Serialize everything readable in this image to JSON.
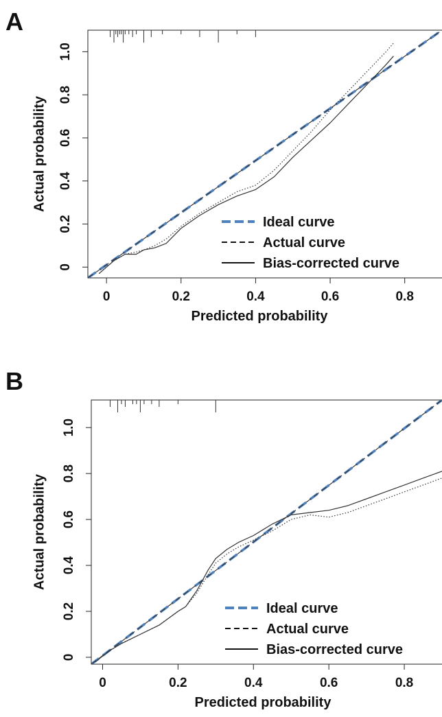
{
  "chart_data": [
    {
      "panel": "A",
      "type": "line",
      "xlabel": "Predicted probability",
      "ylabel": "Actual probability",
      "xlim": [
        -0.05,
        0.9
      ],
      "ylim": [
        -0.05,
        1.1
      ],
      "xticks": [
        {
          "v": 0,
          "label": "0"
        },
        {
          "v": 0.2,
          "label": "0.2"
        },
        {
          "v": 0.4,
          "label": "0.4"
        },
        {
          "v": 0.6,
          "label": "0.6"
        },
        {
          "v": 0.8,
          "label": "0.8"
        }
      ],
      "yticks": [
        {
          "v": 0,
          "label": "0"
        },
        {
          "v": 0.2,
          "label": "0.2"
        },
        {
          "v": 0.4,
          "label": "0.4"
        },
        {
          "v": 0.6,
          "label": "0.6"
        },
        {
          "v": 0.8,
          "label": "0.8"
        },
        {
          "v": 1.0,
          "label": "1.0"
        }
      ],
      "legend_position": "bottom-right",
      "rug_x": [
        0.01,
        0.02,
        0.025,
        0.03,
        0.035,
        0.04,
        0.045,
        0.05,
        0.06,
        0.07,
        0.08,
        0.1,
        0.12,
        0.15,
        0.2,
        0.25,
        0.3,
        0.35,
        0.4
      ],
      "series": [
        {
          "name": "Ideal curve",
          "style": "ideal",
          "color": "#4f81bd",
          "points": [
            [
              -0.05,
              -0.05
            ],
            [
              0.9,
              1.1
            ]
          ]
        },
        {
          "name": "Actual curve",
          "style": "dashed",
          "color": "#333333",
          "points": [
            [
              -0.05,
              -0.05
            ],
            [
              0.9,
              1.1
            ]
          ]
        },
        {
          "name": "Bias-corrected curve",
          "style": "solid",
          "color": "#333333",
          "points": [
            [
              -0.02,
              -0.03
            ],
            [
              0.02,
              0.03
            ],
            [
              0.05,
              0.06
            ],
            [
              0.08,
              0.06
            ],
            [
              0.1,
              0.08
            ],
            [
              0.13,
              0.09
            ],
            [
              0.16,
              0.11
            ],
            [
              0.2,
              0.18
            ],
            [
              0.25,
              0.24
            ],
            [
              0.3,
              0.29
            ],
            [
              0.35,
              0.33
            ],
            [
              0.4,
              0.36
            ],
            [
              0.45,
              0.42
            ],
            [
              0.5,
              0.51
            ],
            [
              0.55,
              0.59
            ],
            [
              0.6,
              0.67
            ],
            [
              0.65,
              0.76
            ],
            [
              0.7,
              0.85
            ],
            [
              0.75,
              0.94
            ],
            [
              0.77,
              0.98
            ]
          ]
        },
        {
          "name": "",
          "style": "dotted",
          "color": "#333333",
          "points": [
            [
              -0.02,
              -0.03
            ],
            [
              0.02,
              0.03
            ],
            [
              0.05,
              0.06
            ],
            [
              0.08,
              0.07
            ],
            [
              0.1,
              0.08
            ],
            [
              0.13,
              0.1
            ],
            [
              0.16,
              0.13
            ],
            [
              0.2,
              0.19
            ],
            [
              0.25,
              0.25
            ],
            [
              0.3,
              0.3
            ],
            [
              0.35,
              0.35
            ],
            [
              0.4,
              0.38
            ],
            [
              0.45,
              0.45
            ],
            [
              0.5,
              0.54
            ],
            [
              0.55,
              0.63
            ],
            [
              0.6,
              0.73
            ],
            [
              0.65,
              0.82
            ],
            [
              0.7,
              0.91
            ],
            [
              0.75,
              1.0
            ],
            [
              0.77,
              1.04
            ]
          ]
        }
      ],
      "legend": [
        {
          "style": "ideal",
          "label": "Ideal curve"
        },
        {
          "style": "dashed",
          "label": "Actual curve"
        },
        {
          "style": "solid",
          "label": "Bias-corrected curve"
        }
      ]
    },
    {
      "panel": "B",
      "type": "line",
      "xlabel": "Predicted probability",
      "ylabel": "Actual probability",
      "xlim": [
        -0.03,
        0.9
      ],
      "ylim": [
        -0.03,
        1.12
      ],
      "xticks": [
        {
          "v": 0,
          "label": "0"
        },
        {
          "v": 0.2,
          "label": "0.2"
        },
        {
          "v": 0.4,
          "label": "0.4"
        },
        {
          "v": 0.6,
          "label": "0.6"
        },
        {
          "v": 0.8,
          "label": "0.8"
        }
      ],
      "yticks": [
        {
          "v": 0,
          "label": "0"
        },
        {
          "v": 0.2,
          "label": "0.2"
        },
        {
          "v": 0.4,
          "label": "0.4"
        },
        {
          "v": 0.6,
          "label": "0.6"
        },
        {
          "v": 0.8,
          "label": "0.8"
        },
        {
          "v": 1.0,
          "label": "1.0"
        }
      ],
      "legend_position": "bottom-right",
      "rug_x": [
        0.02,
        0.04,
        0.05,
        0.06,
        0.08,
        0.09,
        0.1,
        0.11,
        0.13,
        0.15,
        0.2,
        0.3
      ],
      "series": [
        {
          "name": "Ideal curve",
          "style": "ideal",
          "color": "#4f81bd",
          "points": [
            [
              -0.03,
              -0.03
            ],
            [
              0.9,
              1.12
            ]
          ]
        },
        {
          "name": "Actual curve",
          "style": "dashed",
          "color": "#333333",
          "points": [
            [
              -0.03,
              -0.03
            ],
            [
              0.9,
              1.12
            ]
          ]
        },
        {
          "name": "Bias-corrected curve",
          "style": "solid",
          "color": "#333333",
          "points": [
            [
              -0.02,
              -0.02
            ],
            [
              0.02,
              0.03
            ],
            [
              0.05,
              0.06
            ],
            [
              0.1,
              0.1
            ],
            [
              0.15,
              0.14
            ],
            [
              0.2,
              0.2
            ],
            [
              0.22,
              0.22
            ],
            [
              0.25,
              0.29
            ],
            [
              0.28,
              0.38
            ],
            [
              0.3,
              0.43
            ],
            [
              0.33,
              0.47
            ],
            [
              0.36,
              0.5
            ],
            [
              0.4,
              0.53
            ],
            [
              0.45,
              0.58
            ],
            [
              0.5,
              0.62
            ],
            [
              0.55,
              0.63
            ],
            [
              0.6,
              0.64
            ],
            [
              0.65,
              0.66
            ],
            [
              0.7,
              0.69
            ],
            [
              0.75,
              0.72
            ],
            [
              0.8,
              0.75
            ],
            [
              0.85,
              0.78
            ],
            [
              0.9,
              0.81
            ]
          ]
        },
        {
          "name": "",
          "style": "dotted",
          "color": "#333333",
          "points": [
            [
              -0.02,
              -0.02
            ],
            [
              0.02,
              0.03
            ],
            [
              0.05,
              0.06
            ],
            [
              0.1,
              0.1
            ],
            [
              0.15,
              0.14
            ],
            [
              0.2,
              0.2
            ],
            [
              0.22,
              0.22
            ],
            [
              0.25,
              0.28
            ],
            [
              0.28,
              0.36
            ],
            [
              0.3,
              0.41
            ],
            [
              0.33,
              0.45
            ],
            [
              0.36,
              0.48
            ],
            [
              0.4,
              0.51
            ],
            [
              0.45,
              0.55
            ],
            [
              0.5,
              0.6
            ],
            [
              0.55,
              0.62
            ],
            [
              0.6,
              0.61
            ],
            [
              0.65,
              0.63
            ],
            [
              0.7,
              0.66
            ],
            [
              0.75,
              0.69
            ],
            [
              0.8,
              0.72
            ],
            [
              0.85,
              0.75
            ],
            [
              0.9,
              0.78
            ]
          ]
        }
      ],
      "legend": [
        {
          "style": "ideal",
          "label": "Ideal curve"
        },
        {
          "style": "dashed",
          "label": "Actual curve"
        },
        {
          "style": "solid",
          "label": "Bias-corrected curve"
        }
      ]
    }
  ],
  "panels": [
    {
      "letter": "A"
    },
    {
      "letter": "B"
    }
  ]
}
